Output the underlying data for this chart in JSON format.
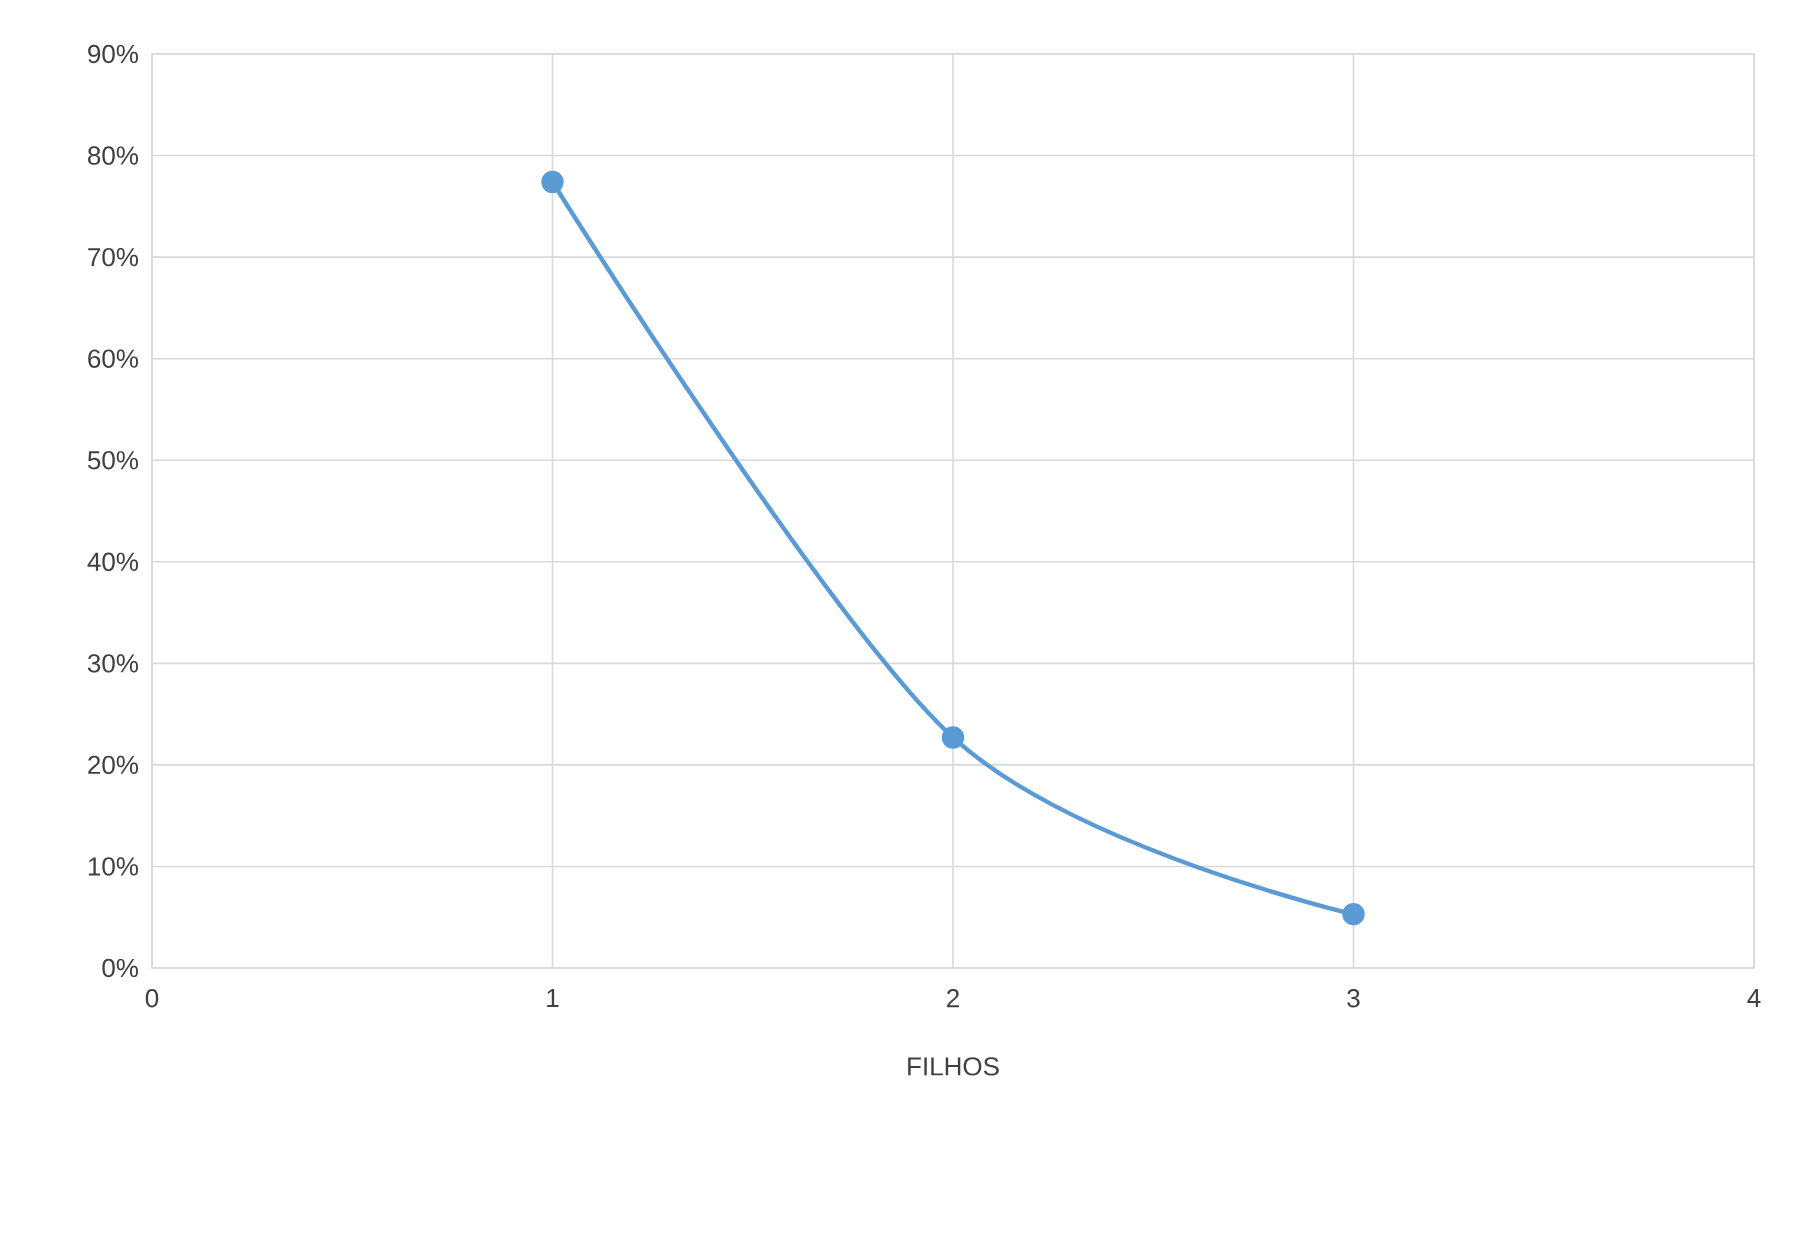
{
  "chart_data": {
    "type": "line",
    "xlabel": "FILHOS",
    "x": [
      1,
      2,
      3
    ],
    "values": [
      77.4,
      22.7,
      5.3
    ],
    "color": "#5b9bd5",
    "marker": "circle",
    "grid": true,
    "xlim": [
      0,
      4
    ],
    "xticks": [
      0,
      1,
      2,
      3,
      4
    ],
    "ylim": [
      0,
      90
    ],
    "yticks": [
      {
        "value": 0,
        "label": "0%"
      },
      {
        "value": 10,
        "label": "10%"
      },
      {
        "value": 20,
        "label": "20%"
      },
      {
        "value": 30,
        "label": "30%"
      },
      {
        "value": 40,
        "label": "40%"
      },
      {
        "value": 50,
        "label": "50%"
      },
      {
        "value": 60,
        "label": "60%"
      },
      {
        "value": 70,
        "label": "70%"
      },
      {
        "value": 80,
        "label": "80%"
      },
      {
        "value": 90,
        "label": "90%"
      }
    ]
  }
}
